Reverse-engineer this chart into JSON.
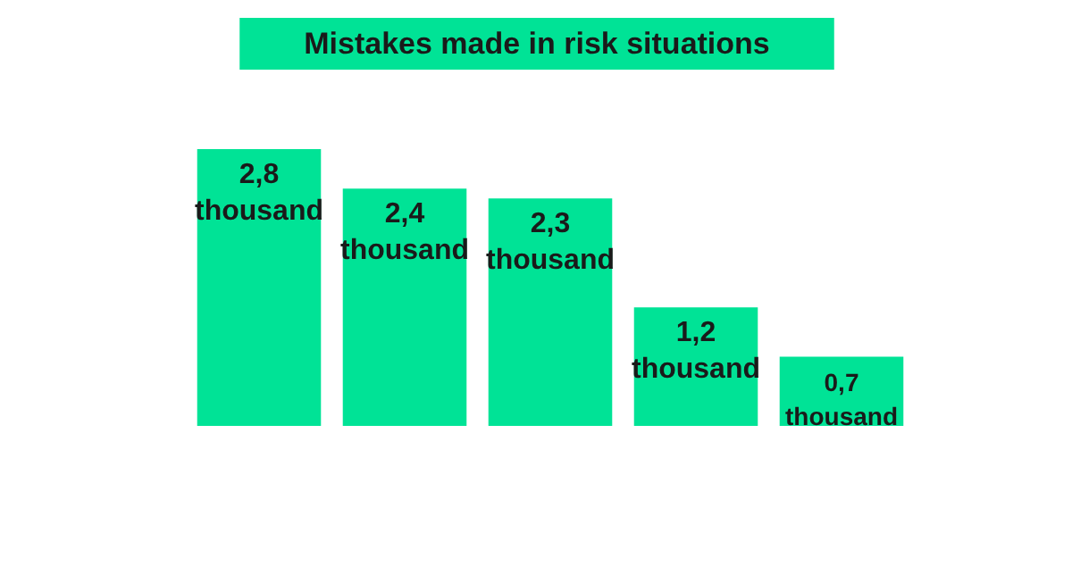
{
  "chart_data": {
    "type": "bar",
    "title": "Mistakes made in risk situations",
    "categories": [
      null,
      null,
      null,
      null,
      null
    ],
    "values": [
      2800,
      2400,
      2300,
      1200,
      700
    ],
    "value_labels": [
      "2,8\nthousand",
      "2,4\nthousand",
      "2,3\nthousand",
      "1,2\nthousand",
      "0,7\nthousand"
    ],
    "color": "#00e396"
  }
}
